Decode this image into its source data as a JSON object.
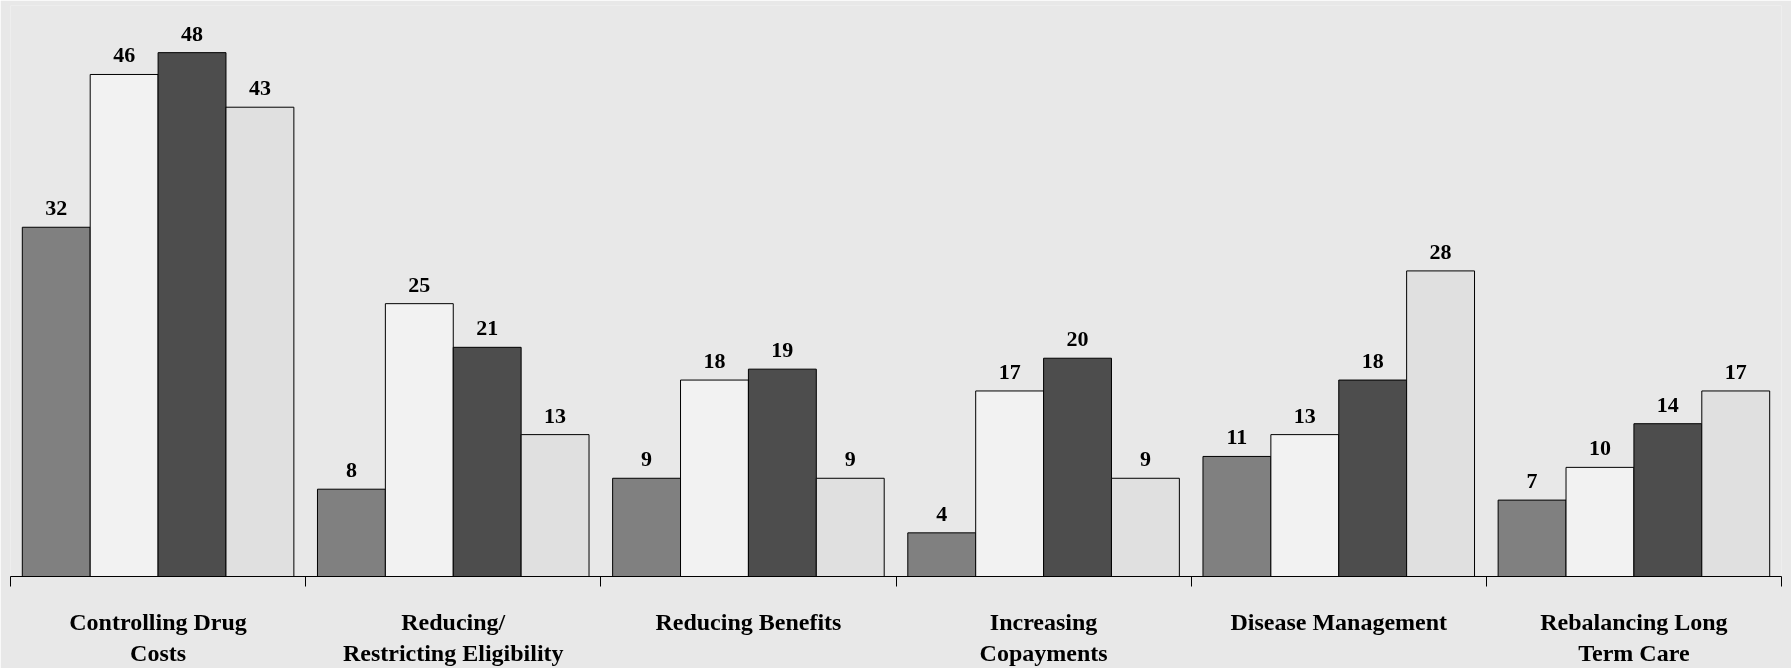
{
  "chart_data": {
    "type": "bar",
    "categories": [
      "Controlling Drug\nCosts",
      "Reducing/\nRestricting Eligibility",
      "Reducing Benefits",
      "Increasing\nCopayments",
      "Disease Management",
      "Rebalancing Long\nTerm Care"
    ],
    "series": [
      {
        "color": "#808080",
        "values": [
          32,
          8,
          9,
          4,
          11,
          7
        ]
      },
      {
        "color": "#f2f2f2",
        "values": [
          46,
          25,
          18,
          17,
          13,
          10
        ]
      },
      {
        "color": "#4d4d4d",
        "values": [
          48,
          21,
          19,
          20,
          18,
          14
        ]
      },
      {
        "color": "#e0e0e0",
        "values": [
          43,
          13,
          9,
          9,
          28,
          17
        ]
      }
    ],
    "data_labels": true
  }
}
